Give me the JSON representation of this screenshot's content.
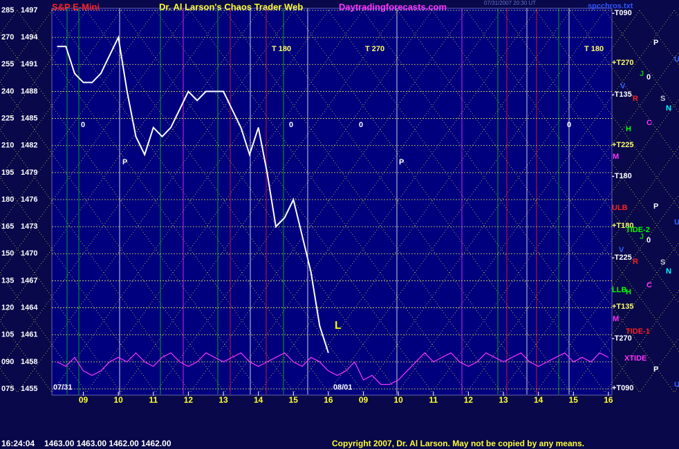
{
  "header": {
    "symbol": "S&P E-Mini",
    "site_title": "Dr. Al Larson's Chaos Trader Web",
    "url": "Daytradingforecasts.com",
    "timestamp": "07/31/2007 20:30 UT",
    "file": "spcchros.txt"
  },
  "footer": {
    "time": "16:24:04",
    "quotes": "1463.00 1463.00 1462.00 1462.00",
    "copyright": "Copyright 2007, Dr. Al Larson. May not be copied by any means."
  },
  "annotations": [
    "-T090",
    "P",
    "U",
    "+T270",
    "J",
    "0",
    "V",
    "-T135",
    "R",
    "S",
    "N",
    "C",
    "H",
    "+T225",
    "M",
    "-T180",
    "P",
    "ULB",
    "U",
    "+T180",
    "TIDE-2",
    "J",
    "0",
    "V",
    "-T225",
    "R",
    "S",
    "N",
    "C",
    "LLB",
    "H",
    "+T135",
    "M",
    "TIDE-1",
    "-T270",
    "XTIDE",
    "P",
    "U",
    "+T090",
    "T 180",
    "T 270",
    "T 180",
    "0",
    "0",
    "0",
    "0",
    "P",
    "P",
    "L",
    "07/31",
    "08/01"
  ],
  "chart_data": {
    "type": "line",
    "x": [
      8.25,
      8.5,
      8.75,
      9,
      9.25,
      9.5,
      9.75,
      10,
      10.25,
      10.5,
      10.75,
      11,
      11.25,
      11.5,
      11.75,
      12,
      12.25,
      12.5,
      12.75,
      13,
      13.25,
      13.5,
      13.75,
      14,
      14.25,
      14.5,
      14.75,
      15,
      15.25,
      15.5,
      15.75,
      16,
      16.25,
      16.5,
      16.75,
      17,
      17.25,
      17.5,
      17.75,
      18,
      18.25,
      18.5,
      18.75,
      19,
      19.25,
      19.5,
      19.75,
      20,
      20.25,
      20.5,
      20.75,
      21,
      21.25,
      21.5,
      21.75,
      22,
      22.25,
      22.5,
      22.75,
      23,
      23.25,
      23.5,
      23.75,
      24
    ],
    "series": [
      {
        "color": "#ffffff",
        "values": [
          1493,
          1493,
          1490,
          1489,
          1489,
          1490,
          1492,
          1494,
          1488,
          1483,
          1481,
          1484,
          1483,
          1484,
          1486,
          1488,
          1487,
          1488,
          1488,
          1488,
          1486,
          1484,
          1481,
          1484,
          1479,
          1473,
          1474,
          1476,
          1472,
          1468,
          1462,
          1459,
          null,
          null,
          null,
          null,
          null,
          null,
          null,
          null,
          null,
          null,
          null,
          null,
          null,
          null,
          null,
          null,
          null,
          null,
          null,
          null,
          null,
          null,
          null,
          null,
          null,
          null,
          null,
          null,
          null,
          null,
          null,
          null
        ]
      },
      {
        "color": "#ff33ff",
        "values": [
          1458,
          1457.5,
          1458.5,
          1457,
          1456.5,
          1457,
          1458,
          1458.5,
          1458,
          1459,
          1458,
          1457.5,
          1458.5,
          1459,
          1458,
          1457.5,
          1458,
          1459,
          1458.5,
          1458,
          1458.5,
          1459,
          1458,
          1457.5,
          1458,
          1458.5,
          1459,
          1458,
          1457.5,
          1458.5,
          1458,
          1457,
          1456.5,
          1457,
          1458,
          1456,
          1456.5,
          1455.5,
          1455.5,
          1456,
          1457,
          1458,
          1459,
          1458,
          1458.5,
          1459,
          1458,
          1457.5,
          1458,
          1459,
          1458.5,
          1458,
          1458.5,
          1459,
          1458,
          1457.5,
          1458,
          1458.5,
          1459,
          1458,
          1458.5,
          1458,
          1459,
          1458.5
        ]
      }
    ],
    "xlim": [
      8.1,
      24.1
    ],
    "xticks": [
      {
        "value": 9,
        "label": "09"
      },
      10,
      11,
      12,
      13,
      14,
      15,
      16,
      {
        "value": 17,
        "label": "09"
      },
      {
        "value": 18,
        "label": "10"
      },
      {
        "value": 19,
        "label": "11"
      },
      {
        "value": 20,
        "label": "12"
      },
      {
        "value": 21,
        "label": "13"
      },
      {
        "value": 22,
        "label": "14"
      },
      {
        "value": 23,
        "label": "15"
      },
      {
        "value": 24,
        "label": "16"
      }
    ],
    "ylim": [
      1455,
      1497
    ],
    "yticks": [
      1455,
      1458,
      1461,
      1464,
      1467,
      1470,
      1473,
      1476,
      1479,
      1482,
      1485,
      1488,
      1491,
      1494,
      1497
    ],
    "y2lim": [
      75,
      285
    ],
    "y2ticks": [
      {
        "value": 75,
        "label": "075"
      },
      {
        "value": 90,
        "label": "090"
      },
      105,
      120,
      135,
      150,
      165,
      180,
      195,
      210,
      225,
      240,
      255,
      270,
      285
    ],
    "grid": true
  }
}
